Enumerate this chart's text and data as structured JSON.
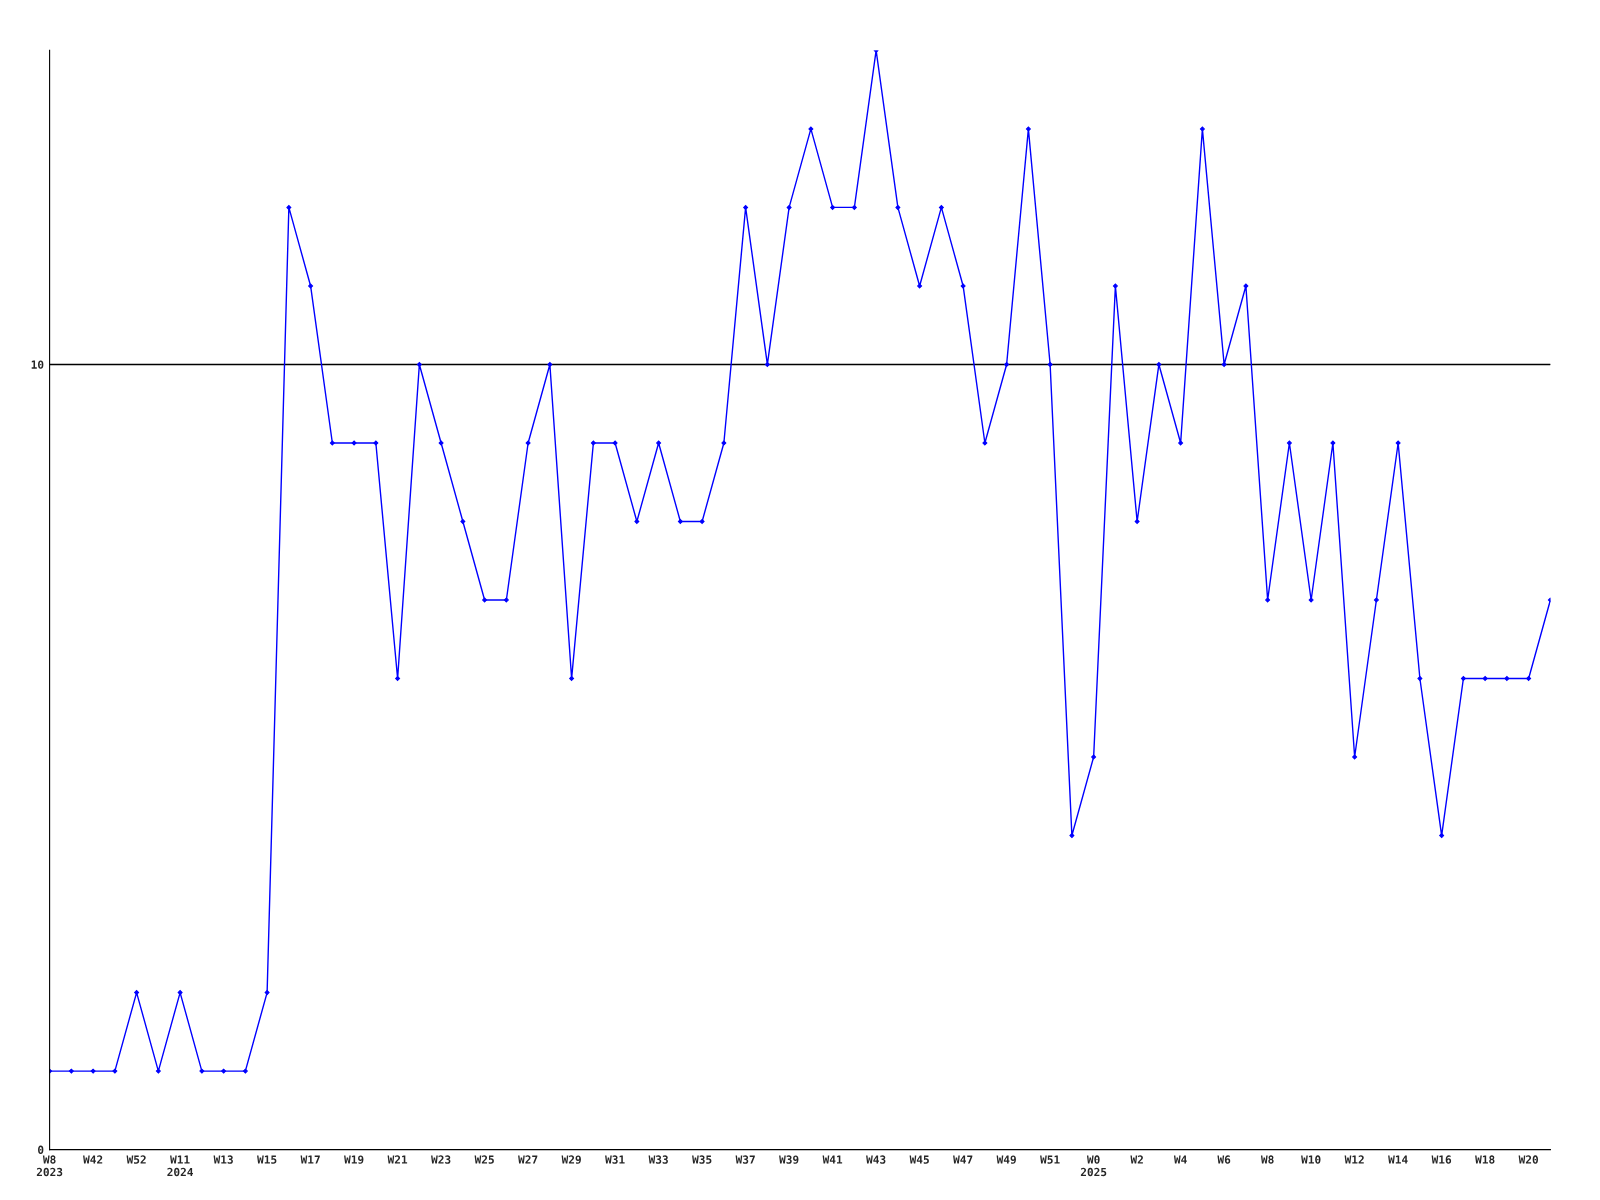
{
  "chart_data": {
    "type": "line",
    "categories": [
      "W8\n2023",
      null,
      "W42",
      null,
      "W52",
      null,
      "W11\n2024",
      null,
      "W13",
      null,
      "W15",
      null,
      "W17",
      null,
      "W19",
      null,
      "W21",
      null,
      "W23",
      null,
      "W25",
      null,
      "W27",
      null,
      "W29",
      null,
      "W31",
      null,
      "W33",
      null,
      "W35",
      null,
      "W37",
      null,
      "W39",
      null,
      "W41",
      null,
      "W43",
      null,
      "W45",
      null,
      "W47",
      null,
      "W49",
      null,
      "W51",
      null,
      "W0\n2025",
      null,
      "W2",
      null,
      "W4",
      null,
      "W6",
      null,
      "W8",
      null,
      "W10",
      null,
      "W12",
      null,
      "W14",
      null,
      "W16",
      null,
      "W18",
      null,
      "W20",
      null
    ],
    "series": [
      {
        "color": "#0000ff",
        "values": [
          1,
          1,
          1,
          1,
          2,
          1,
          2,
          1,
          1,
          1,
          2,
          12,
          11,
          9,
          9,
          9,
          6,
          10,
          9,
          8,
          7,
          7,
          9,
          10,
          6,
          9,
          9,
          8,
          9,
          8,
          8,
          9,
          12,
          10,
          12,
          13,
          12,
          12,
          14,
          12,
          11,
          12,
          11,
          9,
          10,
          13,
          10,
          4,
          5,
          11,
          8,
          10,
          9,
          13,
          10,
          11,
          7,
          9,
          7,
          9,
          5,
          7,
          9,
          6,
          4,
          6,
          6,
          6,
          6,
          7
        ]
      }
    ],
    "ylim": [
      0,
      14
    ],
    "yticks": [
      0,
      10
    ],
    "grid": "y",
    "marker": "diamond",
    "line_style": "solid"
  }
}
